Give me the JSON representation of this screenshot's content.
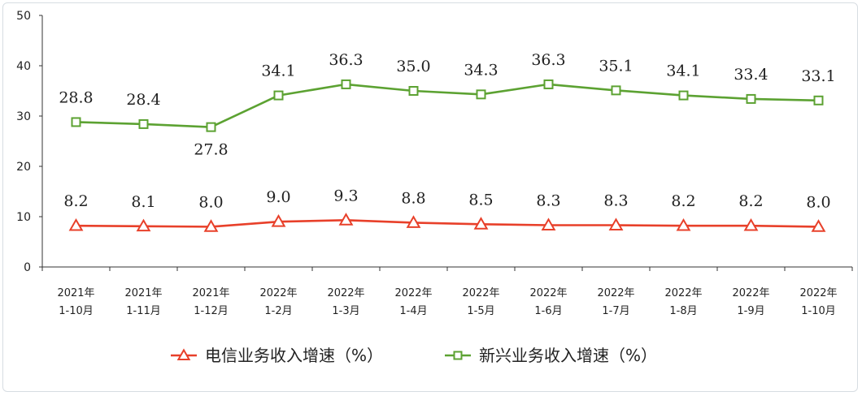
{
  "chart_data": {
    "type": "line",
    "title": "",
    "xlabel": "",
    "ylabel": "",
    "ylim": [
      0,
      50
    ],
    "yticks": [
      "0",
      "10",
      "20",
      "30",
      "40",
      "50"
    ],
    "grid": false,
    "legend_position": "bottom",
    "categories": [
      [
        "2021年",
        "1-10月"
      ],
      [
        "2021年",
        "1-11月"
      ],
      [
        "2021年",
        "1-12月"
      ],
      [
        "2022年",
        "1-2月"
      ],
      [
        "2022年",
        "1-3月"
      ],
      [
        "2022年",
        "1-4月"
      ],
      [
        "2022年",
        "1-5月"
      ],
      [
        "2022年",
        "1-6月"
      ],
      [
        "2022年",
        "1-7月"
      ],
      [
        "2022年",
        "1-8月"
      ],
      [
        "2022年",
        "1-9月"
      ],
      [
        "2022年",
        "1-10月"
      ]
    ],
    "series": [
      {
        "name": "电信业务收入增速（%）",
        "marker": "triangle",
        "color": "#e8402a",
        "values": [
          8.2,
          8.1,
          8.0,
          9.0,
          9.3,
          8.8,
          8.5,
          8.3,
          8.3,
          8.2,
          8.2,
          8.0
        ],
        "labels": [
          "8.2",
          "8.1",
          "8.0",
          "9.0",
          "9.3",
          "8.8",
          "8.5",
          "8.3",
          "8.3",
          "8.2",
          "8.2",
          "8.0"
        ]
      },
      {
        "name": "新兴业务收入增速（%）",
        "marker": "square",
        "color": "#5ca232",
        "values": [
          28.8,
          28.4,
          27.8,
          34.1,
          36.3,
          35.0,
          34.3,
          36.3,
          35.1,
          34.1,
          33.4,
          33.1
        ],
        "labels": [
          "28.8",
          "28.4",
          "27.8",
          "34.1",
          "36.3",
          "35.0",
          "34.3",
          "36.3",
          "35.1",
          "34.1",
          "33.4",
          "33.1"
        ]
      }
    ]
  }
}
